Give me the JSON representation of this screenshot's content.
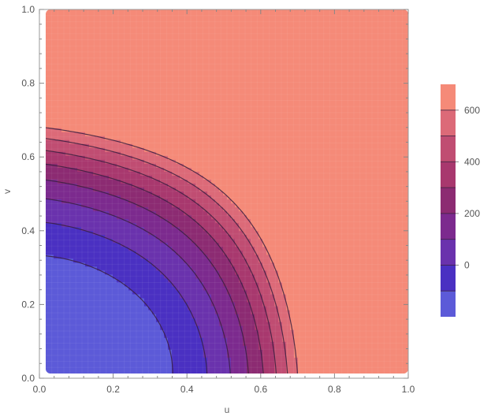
{
  "chart_data": {
    "type": "contour",
    "title": "",
    "xlabel": "u",
    "ylabel": "v",
    "xlim": [
      0,
      1
    ],
    "ylim": [
      0,
      1
    ],
    "xticks": [
      0.0,
      0.2,
      0.4,
      0.6,
      0.8,
      1.0
    ],
    "yticks": [
      0.0,
      0.2,
      0.4,
      0.6,
      0.8,
      1.0
    ],
    "xtick_labels": [
      "0.0",
      "0.2",
      "0.4",
      "0.6",
      "0.8",
      "1.0"
    ],
    "ytick_labels": [
      "0.0",
      "0.2",
      "0.4",
      "0.6",
      "0.8",
      "1.0"
    ],
    "contour_levels": [
      -100,
      0,
      100,
      200,
      300,
      400,
      500,
      600
    ],
    "level_range": [
      -200,
      700
    ],
    "colorbar": {
      "placement": "right",
      "tick_values": [
        0,
        200,
        400,
        600
      ],
      "tick_labels": [
        "0",
        "200",
        "400",
        "600"
      ],
      "band_colors": [
        "#5c5ad8",
        "#4a30c2",
        "#6a32ad",
        "#7c2a8e",
        "#8c2b72",
        "#a8386e",
        "#c04d72",
        "#dc6a78",
        "#f58a78"
      ]
    },
    "grid": true
  }
}
